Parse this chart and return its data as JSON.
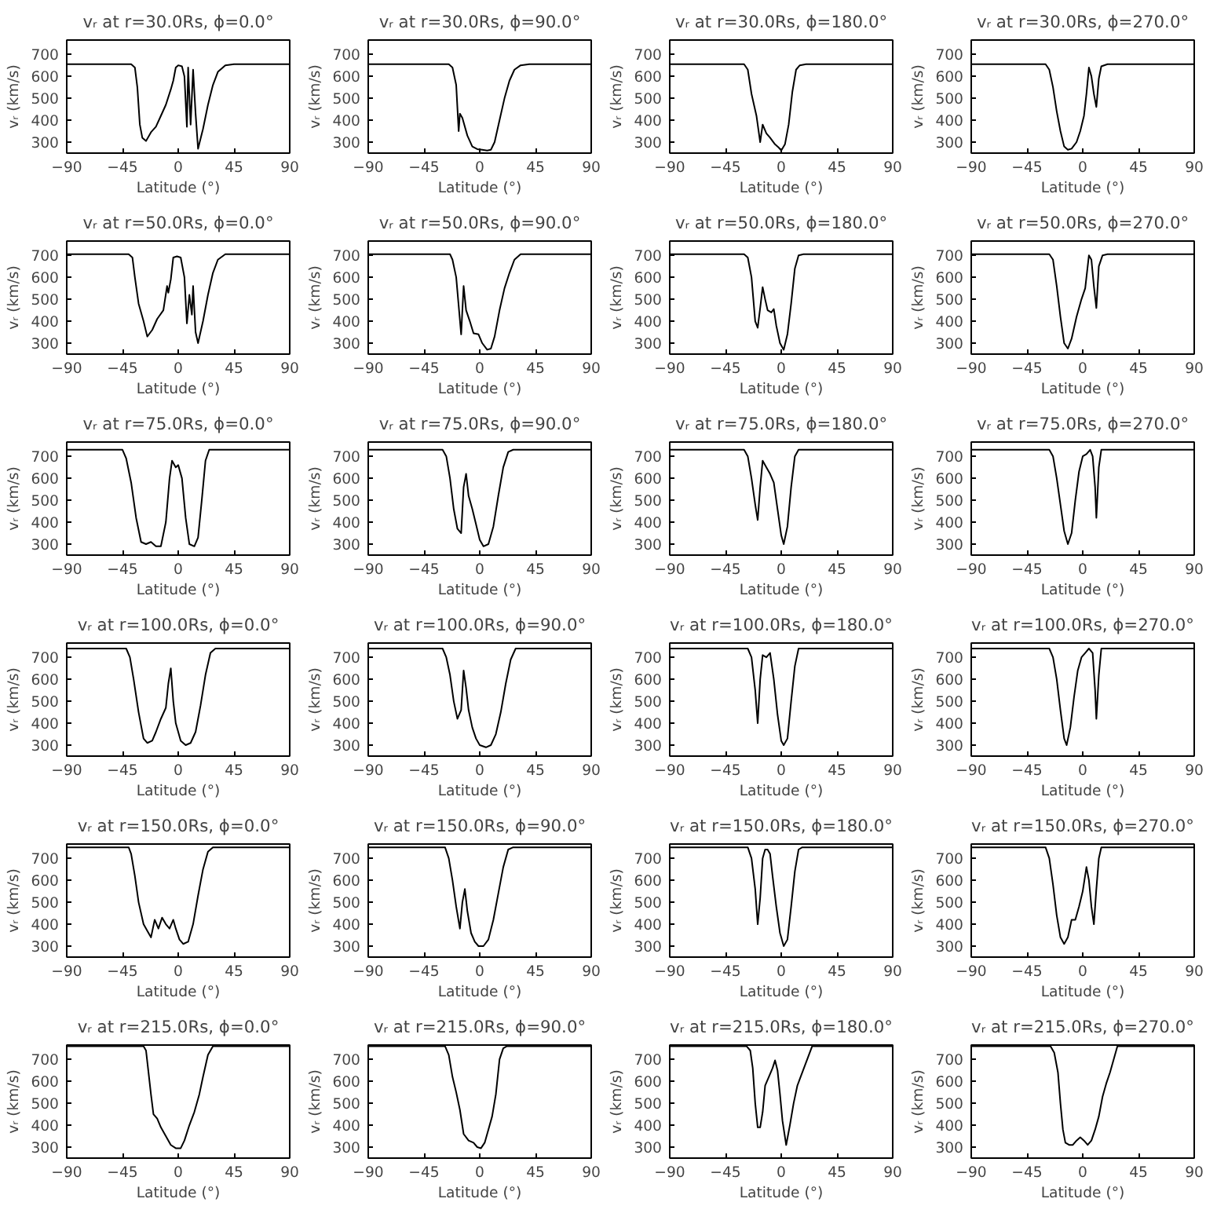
{
  "chart_data": [
    {
      "type": "line",
      "title": "vᵣ at r=30.0Rs, ϕ=0.0°",
      "xlabel": "Latitude (°)",
      "ylabel": "vᵣ (km/s)",
      "xlim": [
        -90,
        90
      ],
      "xticks": [
        -90,
        -45,
        0,
        45,
        90
      ],
      "ylim": [
        250,
        765
      ],
      "yticks": [
        300,
        400,
        500,
        600,
        700
      ],
      "color": "#000000",
      "x": [
        -90,
        -38,
        -35,
        -33,
        -31,
        -29,
        -26,
        -22,
        -18,
        -14,
        -10,
        -6,
        -4,
        -2,
        0,
        3,
        5,
        7,
        8,
        10,
        12,
        14,
        16,
        20,
        24,
        28,
        32,
        38,
        45,
        90
      ],
      "values": [
        655,
        655,
        640,
        550,
        380,
        320,
        305,
        345,
        370,
        420,
        470,
        540,
        580,
        640,
        650,
        645,
        600,
        370,
        640,
        380,
        630,
        430,
        270,
        360,
        470,
        560,
        620,
        650,
        655,
        655
      ]
    },
    {
      "type": "line",
      "title": "vᵣ at r=30.0Rs, ϕ=90.0°",
      "xlabel": "Latitude (°)",
      "ylabel": "vᵣ (km/s)",
      "xlim": [
        -90,
        90
      ],
      "xticks": [
        -90,
        -45,
        0,
        45,
        90
      ],
      "ylim": [
        250,
        765
      ],
      "yticks": [
        300,
        400,
        500,
        600,
        700
      ],
      "color": "#000000",
      "x": [
        -90,
        -25,
        -22,
        -19,
        -17,
        -16,
        -14,
        -10,
        -6,
        -2,
        2,
        6,
        9,
        12,
        16,
        20,
        24,
        28,
        33,
        40,
        90
      ],
      "values": [
        655,
        655,
        640,
        560,
        350,
        430,
        410,
        330,
        280,
        268,
        265,
        262,
        265,
        300,
        400,
        500,
        580,
        630,
        650,
        655,
        655
      ]
    },
    {
      "type": "line",
      "title": "vᵣ at r=30.0Rs, ϕ=180.0°",
      "xlabel": "Latitude (°)",
      "ylabel": "vᵣ (km/s)",
      "xlim": [
        -90,
        90
      ],
      "xticks": [
        -90,
        -45,
        0,
        45,
        90
      ],
      "ylim": [
        250,
        765
      ],
      "yticks": [
        300,
        400,
        500,
        600,
        700
      ],
      "color": "#000000",
      "x": [
        -90,
        -30,
        -27,
        -24,
        -20,
        -17,
        -15,
        -12,
        -9,
        -5,
        -2,
        0,
        3,
        6,
        9,
        12,
        15,
        20,
        90
      ],
      "values": [
        655,
        655,
        630,
        520,
        420,
        300,
        380,
        340,
        320,
        290,
        275,
        262,
        290,
        380,
        530,
        630,
        650,
        655,
        655
      ]
    },
    {
      "type": "line",
      "title": "vᵣ at r=30.0Rs, ϕ=270.0°",
      "xlabel": "Latitude (°)",
      "ylabel": "vᵣ (km/s)",
      "xlim": [
        -90,
        90
      ],
      "xticks": [
        -90,
        -45,
        0,
        45,
        90
      ],
      "ylim": [
        250,
        765
      ],
      "yticks": [
        300,
        400,
        500,
        600,
        700
      ],
      "color": "#000000",
      "x": [
        -90,
        -30,
        -27,
        -24,
        -21,
        -18,
        -15,
        -12,
        -9,
        -5,
        -2,
        1,
        3,
        5,
        7,
        9,
        11,
        13,
        15,
        20,
        90
      ],
      "values": [
        655,
        655,
        630,
        550,
        440,
        350,
        280,
        265,
        270,
        300,
        350,
        420,
        520,
        640,
        600,
        520,
        460,
        590,
        645,
        655,
        655
      ]
    },
    {
      "type": "line",
      "title": "vᵣ at r=50.0Rs, ϕ=0.0°",
      "xlabel": "Latitude (°)",
      "ylabel": "vᵣ (km/s)",
      "xlim": [
        -90,
        90
      ],
      "xticks": [
        -90,
        -45,
        0,
        45,
        90
      ],
      "ylim": [
        250,
        765
      ],
      "yticks": [
        300,
        400,
        500,
        600,
        700
      ],
      "color": "#000000",
      "x": [
        -90,
        -40,
        -37,
        -35,
        -32,
        -28,
        -25,
        -21,
        -17,
        -12,
        -9,
        -8,
        -6,
        -4,
        -1,
        2,
        5,
        7,
        9,
        11,
        12,
        14,
        16,
        20,
        24,
        28,
        32,
        38,
        90
      ],
      "values": [
        705,
        705,
        690,
        600,
        480,
        400,
        330,
        360,
        410,
        450,
        560,
        530,
        590,
        690,
        695,
        690,
        600,
        390,
        520,
        430,
        560,
        350,
        300,
        400,
        520,
        620,
        680,
        705,
        705
      ]
    },
    {
      "type": "line",
      "title": "vᵣ at r=50.0Rs, ϕ=90.0°",
      "xlabel": "Latitude (°)",
      "ylabel": "vᵣ (km/s)",
      "xlim": [
        -90,
        90
      ],
      "xticks": [
        -90,
        -45,
        0,
        45,
        90
      ],
      "ylim": [
        250,
        765
      ],
      "yticks": [
        300,
        400,
        500,
        600,
        700
      ],
      "color": "#000000",
      "x": [
        -90,
        -24,
        -22,
        -19,
        -17,
        -15,
        -13,
        -11,
        -8,
        -5,
        -1,
        2,
        6,
        9,
        12,
        16,
        20,
        24,
        28,
        33,
        90
      ],
      "values": [
        705,
        705,
        680,
        600,
        470,
        340,
        560,
        450,
        400,
        345,
        340,
        300,
        270,
        275,
        330,
        450,
        550,
        620,
        680,
        705,
        705
      ]
    },
    {
      "type": "line",
      "title": "vᵣ at r=50.0Rs, ϕ=180.0°",
      "xlabel": "Latitude (°)",
      "ylabel": "vᵣ (km/s)",
      "xlim": [
        -90,
        90
      ],
      "xticks": [
        -90,
        -45,
        0,
        45,
        90
      ],
      "ylim": [
        250,
        765
      ],
      "yticks": [
        300,
        400,
        500,
        600,
        700
      ],
      "color": "#000000",
      "x": [
        -90,
        -30,
        -27,
        -24,
        -21,
        -19,
        -17,
        -15,
        -13,
        -11,
        -8,
        -6,
        -4,
        -1,
        2,
        5,
        8,
        11,
        14,
        18,
        90
      ],
      "values": [
        705,
        705,
        690,
        600,
        400,
        370,
        460,
        555,
        500,
        450,
        440,
        455,
        380,
        300,
        270,
        340,
        480,
        640,
        700,
        705,
        705
      ]
    },
    {
      "type": "line",
      "title": "vᵣ at r=50.0Rs, ϕ=270.0°",
      "xlabel": "Latitude (°)",
      "ylabel": "vᵣ (km/s)",
      "xlim": [
        -90,
        90
      ],
      "xticks": [
        -90,
        -45,
        0,
        45,
        90
      ],
      "ylim": [
        250,
        765
      ],
      "yticks": [
        300,
        400,
        500,
        600,
        700
      ],
      "color": "#000000",
      "x": [
        -90,
        -27,
        -24,
        -21,
        -18,
        -15,
        -12,
        -9,
        -5,
        -1,
        2,
        5,
        7,
        9,
        11,
        13,
        16,
        20,
        90
      ],
      "values": [
        705,
        705,
        680,
        560,
        420,
        300,
        275,
        320,
        420,
        500,
        550,
        700,
        680,
        560,
        460,
        650,
        700,
        705,
        705
      ]
    },
    {
      "type": "line",
      "title": "vᵣ at r=75.0Rs, ϕ=0.0°",
      "xlabel": "Latitude (°)",
      "ylabel": "vᵣ (km/s)",
      "xlim": [
        -90,
        90
      ],
      "xticks": [
        -90,
        -45,
        0,
        45,
        90
      ],
      "ylim": [
        250,
        765
      ],
      "yticks": [
        300,
        400,
        500,
        600,
        700
      ],
      "color": "#000000",
      "x": [
        -90,
        -45,
        -42,
        -38,
        -34,
        -30,
        -26,
        -22,
        -18,
        -14,
        -10,
        -7,
        -5,
        -2,
        0,
        3,
        6,
        9,
        13,
        16,
        19,
        22,
        25,
        90
      ],
      "values": [
        730,
        730,
        690,
        580,
        420,
        310,
        300,
        310,
        290,
        290,
        400,
        600,
        680,
        650,
        660,
        600,
        420,
        300,
        290,
        330,
        500,
        680,
        730,
        730
      ]
    },
    {
      "type": "line",
      "title": "vᵣ at r=75.0Rs, ϕ=90.0°",
      "xlabel": "Latitude (°)",
      "ylabel": "vᵣ (km/s)",
      "xlim": [
        -90,
        90
      ],
      "xticks": [
        -90,
        -45,
        0,
        45,
        90
      ],
      "ylim": [
        250,
        765
      ],
      "yticks": [
        300,
        400,
        500,
        600,
        700
      ],
      "color": "#000000",
      "x": [
        -90,
        -30,
        -27,
        -24,
        -21,
        -18,
        -15,
        -13,
        -11,
        -9,
        -6,
        -3,
        0,
        3,
        7,
        11,
        15,
        19,
        23,
        27,
        90
      ],
      "values": [
        730,
        730,
        700,
        600,
        460,
        370,
        350,
        560,
        620,
        520,
        460,
        390,
        320,
        290,
        300,
        380,
        520,
        650,
        720,
        730,
        730
      ]
    },
    {
      "type": "line",
      "title": "vᵣ at r=75.0Rs, ϕ=180.0°",
      "xlabel": "Latitude (°)",
      "ylabel": "vᵣ (km/s)",
      "xlim": [
        -90,
        90
      ],
      "xticks": [
        -90,
        -45,
        0,
        45,
        90
      ],
      "ylim": [
        250,
        765
      ],
      "yticks": [
        300,
        400,
        500,
        600,
        700
      ],
      "color": "#000000",
      "x": [
        -90,
        -30,
        -27,
        -24,
        -21,
        -19,
        -17,
        -15,
        -12,
        -9,
        -6,
        -3,
        0,
        2,
        5,
        8,
        11,
        14,
        90
      ],
      "values": [
        730,
        730,
        700,
        600,
        480,
        410,
        560,
        680,
        650,
        620,
        580,
        460,
        340,
        300,
        380,
        560,
        700,
        730,
        730
      ]
    },
    {
      "type": "line",
      "title": "vᵣ at r=75.0Rs, ϕ=270.0°",
      "xlabel": "Latitude (°)",
      "ylabel": "vᵣ (km/s)",
      "xlim": [
        -90,
        90
      ],
      "xticks": [
        -90,
        -45,
        0,
        45,
        90
      ],
      "ylim": [
        250,
        765
      ],
      "yticks": [
        300,
        400,
        500,
        600,
        700
      ],
      "color": "#000000",
      "x": [
        -90,
        -27,
        -24,
        -21,
        -18,
        -15,
        -12,
        -9,
        -6,
        -3,
        0,
        3,
        6,
        8,
        10,
        11,
        13,
        15,
        90
      ],
      "values": [
        730,
        730,
        700,
        600,
        480,
        360,
        300,
        350,
        500,
        630,
        700,
        710,
        730,
        700,
        560,
        420,
        650,
        730,
        730
      ]
    },
    {
      "type": "line",
      "title": "vᵣ at r=100.0Rs, ϕ=0.0°",
      "xlabel": "Latitude (°)",
      "ylabel": "vᵣ (km/s)",
      "xlim": [
        -90,
        90
      ],
      "xticks": [
        -90,
        -45,
        0,
        45,
        90
      ],
      "ylim": [
        250,
        765
      ],
      "yticks": [
        300,
        400,
        500,
        600,
        700
      ],
      "color": "#000000",
      "x": [
        -90,
        -42,
        -39,
        -36,
        -32,
        -28,
        -25,
        -21,
        -18,
        -14,
        -10,
        -8,
        -6,
        -4,
        -2,
        2,
        6,
        10,
        14,
        18,
        22,
        26,
        30,
        90
      ],
      "values": [
        740,
        740,
        700,
        600,
        450,
        330,
        310,
        320,
        360,
        420,
        470,
        580,
        650,
        500,
        400,
        320,
        300,
        310,
        360,
        480,
        620,
        720,
        740,
        740
      ]
    },
    {
      "type": "line",
      "title": "vᵣ at r=100.0Rs, ϕ=90.0°",
      "xlabel": "Latitude (°)",
      "ylabel": "vᵣ (km/s)",
      "xlim": [
        -90,
        90
      ],
      "xticks": [
        -90,
        -45,
        0,
        45,
        90
      ],
      "ylim": [
        250,
        765
      ],
      "yticks": [
        300,
        400,
        500,
        600,
        700
      ],
      "color": "#000000",
      "x": [
        -90,
        -30,
        -27,
        -24,
        -21,
        -18,
        -15,
        -13,
        -11,
        -9,
        -6,
        -3,
        0,
        5,
        9,
        13,
        17,
        21,
        25,
        29,
        90
      ],
      "values": [
        740,
        740,
        700,
        620,
        500,
        420,
        460,
        640,
        560,
        460,
        380,
        330,
        300,
        290,
        300,
        350,
        450,
        580,
        690,
        740,
        740
      ]
    },
    {
      "type": "line",
      "title": "vᵣ at r=100.0Rs, ϕ=180.0°",
      "xlabel": "Latitude (°)",
      "ylabel": "vᵣ (km/s)",
      "xlim": [
        -90,
        90
      ],
      "xticks": [
        -90,
        -45,
        0,
        45,
        90
      ],
      "ylim": [
        250,
        765
      ],
      "yticks": [
        300,
        400,
        500,
        600,
        700
      ],
      "color": "#000000",
      "x": [
        -90,
        -27,
        -24,
        -21,
        -19,
        -17,
        -15,
        -12,
        -9,
        -6,
        -3,
        0,
        2,
        5,
        8,
        11,
        14,
        90
      ],
      "values": [
        740,
        740,
        700,
        550,
        400,
        600,
        710,
        700,
        720,
        600,
        440,
        320,
        300,
        330,
        500,
        660,
        740,
        740
      ]
    },
    {
      "type": "line",
      "title": "vᵣ at r=100.0Rs, ϕ=270.0°",
      "xlabel": "Latitude (°)",
      "ylabel": "vᵣ (km/s)",
      "xlim": [
        -90,
        90
      ],
      "xticks": [
        -90,
        -45,
        0,
        45,
        90
      ],
      "ylim": [
        250,
        765
      ],
      "yticks": [
        300,
        400,
        500,
        600,
        700
      ],
      "color": "#000000",
      "x": [
        -90,
        -27,
        -24,
        -21,
        -18,
        -15,
        -13,
        -10,
        -7,
        -4,
        -1,
        2,
        5,
        8,
        10,
        11,
        13,
        15,
        90
      ],
      "values": [
        740,
        740,
        700,
        600,
        460,
        330,
        300,
        380,
        520,
        640,
        700,
        720,
        740,
        720,
        550,
        420,
        620,
        740,
        740
      ]
    },
    {
      "type": "line",
      "title": "vᵣ at r=150.0Rs, ϕ=0.0°",
      "xlabel": "Latitude (°)",
      "ylabel": "vᵣ (km/s)",
      "xlim": [
        -90,
        90
      ],
      "xticks": [
        -90,
        -45,
        0,
        45,
        90
      ],
      "ylim": [
        250,
        765
      ],
      "yticks": [
        300,
        400,
        500,
        600,
        700
      ],
      "color": "#000000",
      "x": [
        -90,
        -40,
        -38,
        -35,
        -32,
        -28,
        -25,
        -22,
        -19,
        -16,
        -13,
        -10,
        -7,
        -4,
        -2,
        1,
        4,
        8,
        12,
        16,
        20,
        24,
        28,
        90
      ],
      "values": [
        750,
        750,
        720,
        620,
        500,
        400,
        370,
        340,
        420,
        380,
        430,
        400,
        380,
        420,
        380,
        330,
        310,
        320,
        400,
        530,
        650,
        730,
        750,
        750
      ]
    },
    {
      "type": "line",
      "title": "vᵣ at r=150.0Rs, ϕ=90.0°",
      "xlabel": "Latitude (°)",
      "ylabel": "vᵣ (km/s)",
      "xlim": [
        -90,
        90
      ],
      "xticks": [
        -90,
        -45,
        0,
        45,
        90
      ],
      "ylim": [
        250,
        765
      ],
      "yticks": [
        300,
        400,
        500,
        600,
        700
      ],
      "color": "#000000",
      "x": [
        -90,
        -28,
        -25,
        -22,
        -19,
        -16,
        -14,
        -12,
        -10,
        -7,
        -4,
        -1,
        3,
        7,
        11,
        15,
        19,
        23,
        27,
        90
      ],
      "values": [
        750,
        750,
        700,
        600,
        480,
        380,
        500,
        560,
        460,
        360,
        320,
        300,
        300,
        330,
        420,
        540,
        660,
        740,
        750,
        750
      ]
    },
    {
      "type": "line",
      "title": "vᵣ at r=150.0Rs, ϕ=180.0°",
      "xlabel": "Latitude (°)",
      "ylabel": "vᵣ (km/s)",
      "xlim": [
        -90,
        90
      ],
      "xticks": [
        -90,
        -45,
        0,
        45,
        90
      ],
      "ylim": [
        250,
        765
      ],
      "yticks": [
        300,
        400,
        500,
        600,
        700
      ],
      "color": "#000000",
      "x": [
        -90,
        -27,
        -24,
        -21,
        -19,
        -17,
        -15,
        -13,
        -11,
        -9,
        -7,
        -4,
        -1,
        2,
        5,
        8,
        11,
        14,
        17,
        90
      ],
      "values": [
        750,
        750,
        700,
        560,
        400,
        520,
        700,
        740,
        740,
        720,
        620,
        480,
        360,
        300,
        330,
        480,
        640,
        740,
        750,
        750
      ]
    },
    {
      "type": "line",
      "title": "vᵣ at r=150.0Rs, ϕ=270.0°",
      "xlabel": "Latitude (°)",
      "ylabel": "vᵣ (km/s)",
      "xlim": [
        -90,
        90
      ],
      "xticks": [
        -90,
        -45,
        0,
        45,
        90
      ],
      "ylim": [
        250,
        765
      ],
      "yticks": [
        300,
        400,
        500,
        600,
        700
      ],
      "color": "#000000",
      "x": [
        -90,
        -30,
        -27,
        -24,
        -21,
        -18,
        -15,
        -12,
        -9,
        -6,
        -3,
        0,
        3,
        5,
        7,
        9,
        11,
        13,
        15,
        90
      ],
      "values": [
        750,
        750,
        700,
        580,
        440,
        340,
        310,
        340,
        420,
        420,
        480,
        550,
        660,
        600,
        480,
        400,
        560,
        700,
        750,
        750
      ]
    },
    {
      "type": "line",
      "title": "vᵣ at r=215.0Rs, ϕ=0.0°",
      "xlabel": "Latitude (°)",
      "ylabel": "vᵣ (km/s)",
      "xlim": [
        -90,
        90
      ],
      "xticks": [
        -90,
        -45,
        0,
        45,
        90
      ],
      "ylim": [
        250,
        765
      ],
      "yticks": [
        300,
        400,
        500,
        600,
        700
      ],
      "color": "#000000",
      "x": [
        -90,
        -28,
        -26,
        -24,
        -22,
        -20,
        -17,
        -14,
        -10,
        -6,
        -2,
        2,
        5,
        9,
        13,
        17,
        20,
        24,
        28,
        90
      ],
      "values": [
        760,
        760,
        740,
        640,
        540,
        450,
        430,
        390,
        350,
        310,
        295,
        295,
        330,
        400,
        460,
        540,
        620,
        720,
        760,
        760
      ]
    },
    {
      "type": "line",
      "title": "vᵣ at r=215.0Rs, ϕ=90.0°",
      "xlabel": "Latitude (°)",
      "ylabel": "vᵣ (km/s)",
      "xlim": [
        -90,
        90
      ],
      "xticks": [
        -90,
        -45,
        0,
        45,
        90
      ],
      "ylim": [
        250,
        765
      ],
      "yticks": [
        300,
        400,
        500,
        600,
        700
      ],
      "color": "#000000",
      "x": [
        -90,
        -28,
        -25,
        -22,
        -19,
        -16,
        -13,
        -9,
        -5,
        -2,
        1,
        4,
        7,
        10,
        13,
        16,
        19,
        22,
        90
      ],
      "values": [
        760,
        760,
        720,
        620,
        550,
        470,
        360,
        330,
        320,
        300,
        295,
        320,
        380,
        440,
        540,
        700,
        750,
        760,
        760
      ]
    },
    {
      "type": "line",
      "title": "vᵣ at r=215.0Rs, ϕ=180.0°",
      "xlabel": "Latitude (°)",
      "ylabel": "vᵣ (km/s)",
      "xlim": [
        -90,
        90
      ],
      "xticks": [
        -90,
        -45,
        0,
        45,
        90
      ],
      "ylim": [
        250,
        765
      ],
      "yticks": [
        300,
        400,
        500,
        600,
        700
      ],
      "color": "#000000",
      "x": [
        -90,
        -28,
        -25,
        -23,
        -21,
        -19,
        -17,
        -15,
        -13,
        -10,
        -7,
        -5,
        -3,
        -1,
        1,
        4,
        7,
        10,
        13,
        17,
        21,
        25,
        90
      ],
      "values": [
        760,
        760,
        740,
        660,
        500,
        390,
        390,
        460,
        580,
        620,
        660,
        695,
        650,
        540,
        420,
        310,
        400,
        500,
        580,
        640,
        700,
        760,
        760
      ]
    },
    {
      "type": "line",
      "title": "vᵣ at r=215.0Rs, ϕ=270.0°",
      "xlabel": "Latitude (°)",
      "ylabel": "vᵣ (km/s)",
      "xlim": [
        -90,
        90
      ],
      "xticks": [
        -90,
        -45,
        0,
        45,
        90
      ],
      "ylim": [
        250,
        765
      ],
      "yticks": [
        300,
        400,
        500,
        600,
        700
      ],
      "color": "#000000",
      "x": [
        -90,
        -26,
        -23,
        -20,
        -18,
        -16,
        -14,
        -11,
        -8,
        -5,
        -2,
        1,
        4,
        7,
        10,
        13,
        16,
        19,
        22,
        25,
        28,
        90
      ],
      "values": [
        760,
        760,
        730,
        640,
        500,
        380,
        320,
        310,
        310,
        330,
        345,
        330,
        310,
        330,
        380,
        440,
        530,
        590,
        640,
        700,
        760,
        760
      ]
    }
  ]
}
